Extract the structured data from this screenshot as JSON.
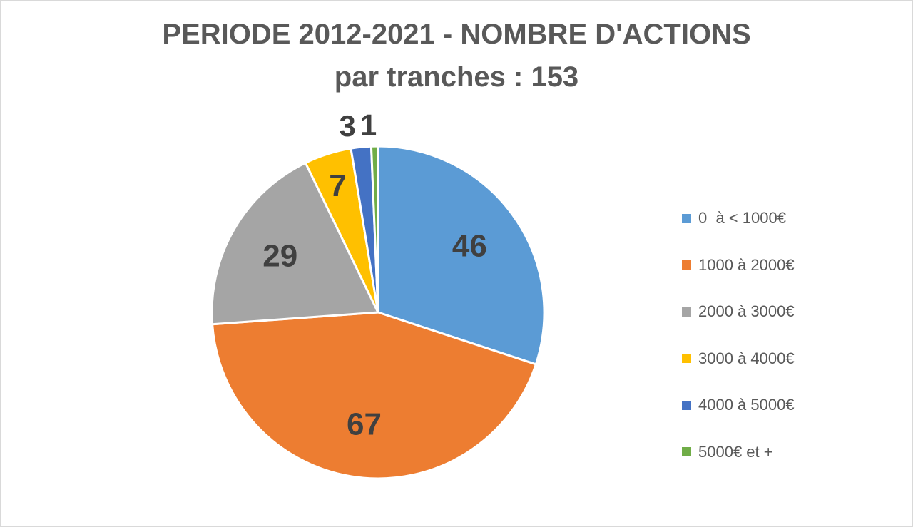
{
  "chart_data": {
    "type": "pie",
    "title": "PERIODE 2012-2021 - NOMBRE D'ACTIONS",
    "subtitle": "par tranches : 153",
    "categories": [
      "0  à < 1000€",
      "1000 à 2000€",
      "2000 à 3000€",
      "3000 à 4000€",
      "4000 à 5000€",
      "5000€ et +"
    ],
    "values": [
      46,
      67,
      29,
      7,
      3,
      1
    ],
    "colors": [
      "#5B9BD5",
      "#ED7D31",
      "#A5A5A5",
      "#FFC000",
      "#4472C4",
      "#70AD47"
    ],
    "data_labels": [
      "46",
      "67",
      "29",
      "7",
      "3",
      "1"
    ],
    "legend_placement": "right",
    "start_angle": "12 o'clock, clockwise"
  }
}
